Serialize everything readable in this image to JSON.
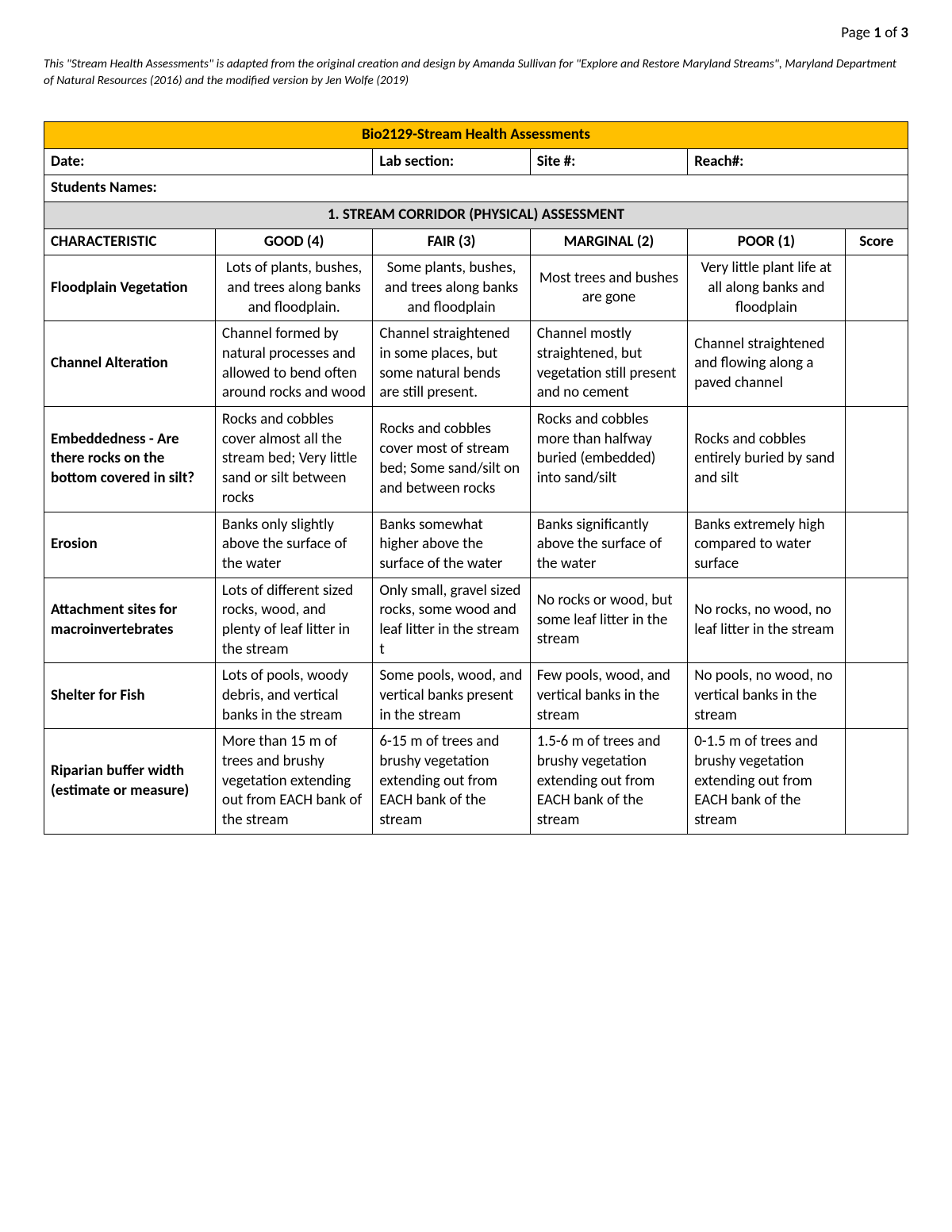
{
  "page_indicator": {
    "prefix": "Page ",
    "current": "1",
    "sep": " of ",
    "total": "3"
  },
  "attribution": "This \"Stream Health Assessments\" is adapted from the original creation and design by Amanda Sullivan for \"Explore and Restore Maryland Streams\", Maryland Department of Natural Resources (2016) and the modified version by Jen Wolfe (2019)",
  "title": "Bio2129-Stream Health Assessments",
  "colors": {
    "title_bg": "#ffc000",
    "section_bg": "#d9d9d9",
    "border": "#000000",
    "page_bg": "#ffffff",
    "text": "#000000"
  },
  "meta": {
    "date_label": "Date:",
    "lab_label": "Lab section:",
    "site_label": "Site #:",
    "reach_label": "Reach#:",
    "students_label": "Students Names:"
  },
  "section_header": "1. STREAM CORRIDOR (PHYSICAL) ASSESSMENT",
  "columns": {
    "characteristic": "CHARACTERISTIC",
    "good": "GOOD (4)",
    "fair": "FAIR (3)",
    "marginal": "MARGINAL (2)",
    "poor": "POOR (1)",
    "score": "Score"
  },
  "rows": [
    {
      "name": "Floodplain Vegetation",
      "good": "Lots of plants, bushes, and trees along banks and floodplain.",
      "fair": "Some plants, bushes, and trees along banks and floodplain",
      "marginal": "Most trees and bushes are gone",
      "poor": "Very little plant life at all along banks and floodplain",
      "good_align": "center",
      "fair_align": "center",
      "marg_align": "center",
      "poor_align": "center",
      "good_valign": "top",
      "fair_valign": "top",
      "marg_valign": "middle",
      "poor_valign": "top"
    },
    {
      "name": "Channel Alteration",
      "good": "Channel formed by natural processes and allowed to bend often around rocks and wood",
      "fair": "Channel straightened in some places, but some natural bends are still present.",
      "marginal": "Channel mostly straightened, but vegetation still present and no cement",
      "poor": "Channel straightened and flowing along a paved channel",
      "good_align": "left",
      "fair_align": "left",
      "marg_align": "left",
      "poor_align": "left",
      "good_valign": "top",
      "fair_valign": "top",
      "marg_valign": "middle",
      "poor_valign": "middle"
    },
    {
      "name": "Embeddedness - Are there rocks on the bottom covered in silt?",
      "good": "Rocks and cobbles cover almost all the stream bed; Very little sand or silt between rocks",
      "fair": "Rocks and cobbles cover most of stream bed; Some sand/silt on and between rocks",
      "marginal": "Rocks and cobbles more than halfway buried (embedded) into sand/silt",
      "poor": "Rocks and cobbles entirely buried by sand and silt",
      "good_align": "left",
      "fair_align": "left",
      "marg_align": "left",
      "poor_align": "left",
      "good_valign": "middle",
      "fair_valign": "middle",
      "marg_valign": "top",
      "poor_valign": "middle"
    },
    {
      "name": "Erosion",
      "good": "Banks only slightly above the surface of the water",
      "fair": "Banks somewhat higher above the surface of the water",
      "marginal": "Banks significantly above the surface of the water",
      "poor": "Banks extremely high compared to water surface",
      "good_align": "left",
      "fair_align": "left",
      "marg_align": "left",
      "poor_align": "left",
      "good_valign": "middle",
      "fair_valign": "middle",
      "marg_valign": "top",
      "poor_valign": "middle"
    },
    {
      "name": "Attachment sites for macroinvertebrates",
      "good": "Lots of different sized rocks, wood, and plenty of leaf litter in the stream",
      "fair": "Only small, gravel sized rocks, some wood and leaf litter in the stream t",
      "marginal": "No rocks or wood, but some leaf litter in the stream",
      "poor": "No rocks, no wood, no leaf litter in the stream",
      "good_align": "left",
      "fair_align": "left",
      "marg_align": "left",
      "poor_align": "left",
      "good_valign": "middle",
      "fair_valign": "top",
      "marg_valign": "middle",
      "poor_valign": "middle"
    },
    {
      "name": "Shelter for Fish",
      "good": "Lots of pools, woody debris, and vertical banks in the stream",
      "fair": "Some pools, wood, and vertical banks present in the stream",
      "marginal": "Few pools, wood, and vertical banks in the stream",
      "poor": "No pools, no wood, no vertical banks in the stream",
      "good_align": "left",
      "fair_align": "left",
      "marg_align": "left",
      "poor_align": "left",
      "good_valign": "middle",
      "fair_valign": "top",
      "marg_valign": "middle",
      "poor_valign": "middle"
    },
    {
      "name": "Riparian buffer width (estimate or measure)",
      "good": "More than 15 m of trees and brushy vegetation extending out from EACH bank of the stream",
      "fair": "6-15 m of trees and brushy vegetation extending out from EACH bank of the stream",
      "marginal": "1.5-6 m of trees and brushy vegetation extending out from EACH bank of the stream",
      "poor": "0-1.5 m of trees and brushy vegetation extending out from EACH bank of the stream",
      "good_align": "left",
      "fair_align": "left",
      "marg_align": "left",
      "poor_align": "left",
      "good_valign": "top",
      "fair_valign": "middle",
      "marg_valign": "middle",
      "poor_valign": "middle"
    }
  ]
}
